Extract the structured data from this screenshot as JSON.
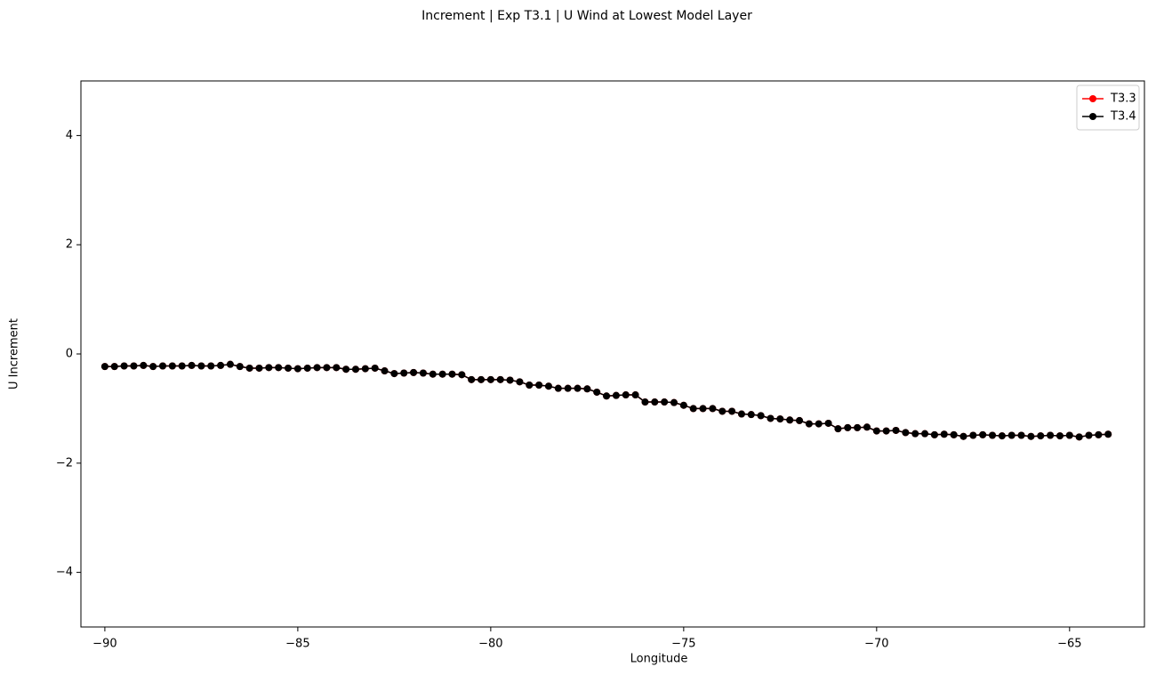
{
  "chart_data": {
    "type": "line",
    "title": "Increment | Exp T3.1 | U Wind at Lowest Model Layer",
    "xlabel": "Longitude",
    "ylabel": "U Increment",
    "x": [
      -90,
      -89.75,
      -89.5,
      -89.25,
      -89,
      -88.75,
      -88.5,
      -88.25,
      -88,
      -87.75,
      -87.5,
      -87.25,
      -87,
      -86.75,
      -86.5,
      -86.25,
      -86,
      -85.75,
      -85.5,
      -85.25,
      -85,
      -84.75,
      -84.5,
      -84.25,
      -84,
      -83.75,
      -83.5,
      -83.25,
      -83,
      -82.75,
      -82.5,
      -82.25,
      -82,
      -81.75,
      -81.5,
      -81.25,
      -81,
      -80.75,
      -80.5,
      -80.25,
      -80,
      -79.75,
      -79.5,
      -79.25,
      -79,
      -78.75,
      -78.5,
      -78.25,
      -78,
      -77.75,
      -77.5,
      -77.25,
      -77,
      -76.75,
      -76.5,
      -76.25,
      -76,
      -75.75,
      -75.5,
      -75.25,
      -75,
      -74.75,
      -74.5,
      -74.25,
      -74,
      -73.75,
      -73.5,
      -73.25,
      -73,
      -72.75,
      -72.5,
      -72.25,
      -72,
      -71.75,
      -71.5,
      -71.25,
      -71,
      -70.75,
      -70.5,
      -70.25,
      -70,
      -69.75,
      -69.5,
      -69.25,
      -69,
      -68.75,
      -68.5,
      -68.25,
      -68,
      -67.75,
      -67.5,
      -67.25,
      -67,
      -66.75,
      -66.5,
      -66.25,
      -66,
      -65.75,
      -65.5,
      -65.25,
      -65,
      -64.75,
      -64.5,
      -64.25,
      -64
    ],
    "series": [
      {
        "name": "T3.3",
        "color": "#ff0000",
        "values": [
          -0.23,
          -0.23,
          -0.22,
          -0.22,
          -0.21,
          -0.23,
          -0.22,
          -0.22,
          -0.22,
          -0.21,
          -0.22,
          -0.22,
          -0.21,
          -0.19,
          -0.23,
          -0.26,
          -0.26,
          -0.25,
          -0.25,
          -0.26,
          -0.27,
          -0.26,
          -0.25,
          -0.25,
          -0.25,
          -0.28,
          -0.28,
          -0.27,
          -0.26,
          -0.31,
          -0.36,
          -0.35,
          -0.34,
          -0.35,
          -0.37,
          -0.37,
          -0.37,
          -0.38,
          -0.47,
          -0.47,
          -0.47,
          -0.47,
          -0.48,
          -0.51,
          -0.57,
          -0.57,
          -0.59,
          -0.63,
          -0.63,
          -0.63,
          -0.64,
          -0.7,
          -0.77,
          -0.76,
          -0.75,
          -0.75,
          -0.88,
          -0.88,
          -0.88,
          -0.89,
          -0.94,
          -1.0,
          -1.0,
          -1.0,
          -1.05,
          -1.05,
          -1.1,
          -1.11,
          -1.13,
          -1.18,
          -1.19,
          -1.21,
          -1.22,
          -1.28,
          -1.28,
          -1.27,
          -1.37,
          -1.35,
          -1.35,
          -1.34,
          -1.41,
          -1.41,
          -1.4,
          -1.44,
          -1.46,
          -1.46,
          -1.48,
          -1.47,
          -1.48,
          -1.51,
          -1.49,
          -1.48,
          -1.49,
          -1.5,
          -1.49,
          -1.49,
          -1.51,
          -1.5,
          -1.49,
          -1.5,
          -1.49,
          -1.52,
          -1.49,
          -1.48,
          -1.47
        ]
      },
      {
        "name": "T3.4",
        "color": "#000000",
        "values": [
          -0.23,
          -0.23,
          -0.22,
          -0.22,
          -0.21,
          -0.23,
          -0.22,
          -0.22,
          -0.22,
          -0.21,
          -0.22,
          -0.22,
          -0.21,
          -0.19,
          -0.23,
          -0.26,
          -0.26,
          -0.25,
          -0.25,
          -0.26,
          -0.27,
          -0.26,
          -0.25,
          -0.25,
          -0.25,
          -0.28,
          -0.28,
          -0.27,
          -0.26,
          -0.31,
          -0.36,
          -0.35,
          -0.34,
          -0.35,
          -0.37,
          -0.37,
          -0.37,
          -0.38,
          -0.47,
          -0.47,
          -0.47,
          -0.47,
          -0.48,
          -0.51,
          -0.57,
          -0.57,
          -0.59,
          -0.63,
          -0.63,
          -0.63,
          -0.64,
          -0.7,
          -0.77,
          -0.76,
          -0.75,
          -0.75,
          -0.88,
          -0.88,
          -0.88,
          -0.89,
          -0.94,
          -1.0,
          -1.0,
          -1.0,
          -1.05,
          -1.05,
          -1.1,
          -1.11,
          -1.13,
          -1.18,
          -1.19,
          -1.21,
          -1.22,
          -1.28,
          -1.28,
          -1.27,
          -1.37,
          -1.35,
          -1.35,
          -1.34,
          -1.41,
          -1.41,
          -1.4,
          -1.44,
          -1.46,
          -1.46,
          -1.48,
          -1.47,
          -1.48,
          -1.51,
          -1.49,
          -1.48,
          -1.49,
          -1.5,
          -1.49,
          -1.49,
          -1.51,
          -1.5,
          -1.49,
          -1.5,
          -1.49,
          -1.52,
          -1.49,
          -1.48,
          -1.47
        ]
      }
    ],
    "xlim": [
      -90.62,
      -63.06
    ],
    "xticks": [
      {
        "value": -90,
        "label": "−90"
      },
      {
        "value": -85,
        "label": "−85"
      },
      {
        "value": -80,
        "label": "−80"
      },
      {
        "value": -75,
        "label": "−75"
      },
      {
        "value": -70,
        "label": "−70"
      },
      {
        "value": -65,
        "label": "−65"
      }
    ],
    "ylim": [
      -5,
      5
    ],
    "yticks": [
      {
        "value": -4,
        "label": "−4"
      },
      {
        "value": -2,
        "label": "−2"
      },
      0,
      2,
      4
    ],
    "grid": false,
    "legend": "upper right"
  }
}
